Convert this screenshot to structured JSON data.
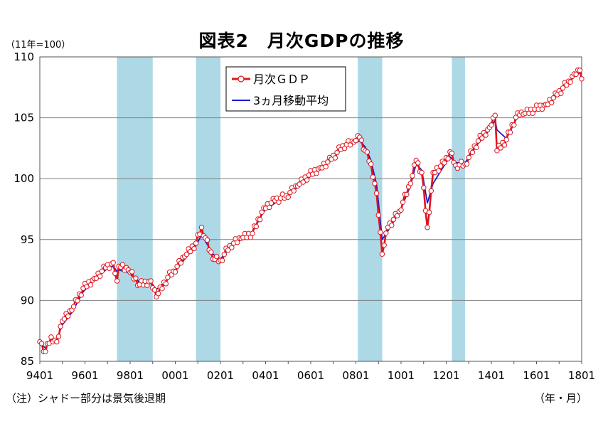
{
  "header": {
    "title": "図表2　月次GDPの推移",
    "unit": "（11年=100）"
  },
  "footer": {
    "note": "（注）シャドー部分は景気後退期",
    "x_unit": "（年・月）"
  },
  "colors": {
    "monthly": "#e0141e",
    "moving_avg": "#1c1ccf",
    "shade": "#add8e6",
    "grid": "#7f7f7f",
    "marker_fill": "#ffffff"
  },
  "chart_data": {
    "type": "line",
    "x_tick_labels": [
      "9401",
      "9601",
      "9801",
      "0001",
      "0201",
      "0401",
      "0601",
      "0801",
      "1001",
      "1201",
      "1401",
      "1601",
      "1801"
    ],
    "x_range": [
      "1994-01",
      "2018-01"
    ],
    "ylim": [
      85,
      110
    ],
    "y_ticks": [
      85,
      90,
      95,
      100,
      105,
      110
    ],
    "grid": true,
    "legend_position": "top-left inside plot",
    "recessions": [
      [
        "1997-06",
        "1999-01"
      ],
      [
        "2000-12",
        "2002-01"
      ],
      [
        "2008-02",
        "2009-03"
      ],
      [
        "2012-04",
        "2012-11"
      ]
    ],
    "series": [
      {
        "name": "月次ＧＤＰ",
        "style": "line-with-circle-markers",
        "anchors": [
          [
            "1994-01",
            86.6
          ],
          [
            "1994-04",
            85.8
          ],
          [
            "1994-07",
            87.0
          ],
          [
            "1994-10",
            86.6
          ],
          [
            "1995-01",
            88.3
          ],
          [
            "1995-06",
            89.2
          ],
          [
            "1995-12",
            91.0
          ],
          [
            "1996-06",
            91.8
          ],
          [
            "1996-12",
            92.7
          ],
          [
            "1997-04",
            93.1
          ],
          [
            "1997-06",
            91.6
          ],
          [
            "1997-07",
            92.8
          ],
          [
            "1997-12",
            92.5
          ],
          [
            "1998-06",
            91.3
          ],
          [
            "1998-12",
            91.6
          ],
          [
            "1999-03",
            90.3
          ],
          [
            "1999-09",
            91.9
          ],
          [
            "1999-12",
            92.4
          ],
          [
            "2000-06",
            93.6
          ],
          [
            "2000-12",
            94.7
          ],
          [
            "2001-03",
            96.0
          ],
          [
            "2001-09",
            93.4
          ],
          [
            "2002-01",
            93.3
          ],
          [
            "2002-06",
            94.5
          ],
          [
            "2002-12",
            95.1
          ],
          [
            "2003-06",
            95.5
          ],
          [
            "2003-12",
            97.6
          ],
          [
            "2004-06",
            98.2
          ],
          [
            "2004-12",
            98.6
          ],
          [
            "2005-06",
            99.4
          ],
          [
            "2005-12",
            100.3
          ],
          [
            "2006-06",
            100.9
          ],
          [
            "2006-12",
            101.6
          ],
          [
            "2007-06",
            102.7
          ],
          [
            "2007-12",
            103.0
          ],
          [
            "2008-03",
            103.4
          ],
          [
            "2008-06",
            102.3
          ],
          [
            "2008-09",
            101.2
          ],
          [
            "2008-12",
            98.8
          ],
          [
            "2009-03",
            93.8
          ],
          [
            "2009-06",
            96.0
          ],
          [
            "2009-12",
            97.3
          ],
          [
            "2010-06",
            99.6
          ],
          [
            "2010-09",
            101.5
          ],
          [
            "2010-12",
            100.5
          ],
          [
            "2011-03",
            96.0
          ],
          [
            "2011-06",
            100.5
          ],
          [
            "2011-12",
            101.3
          ],
          [
            "2012-03",
            102.2
          ],
          [
            "2012-06",
            101.1
          ],
          [
            "2012-11",
            101.2
          ],
          [
            "2013-06",
            103.1
          ],
          [
            "2013-12",
            104.2
          ],
          [
            "2014-03",
            105.2
          ],
          [
            "2014-04",
            102.3
          ],
          [
            "2014-09",
            103.2
          ],
          [
            "2015-03",
            105.4
          ],
          [
            "2015-06",
            105.3
          ],
          [
            "2015-12",
            105.7
          ],
          [
            "2016-06",
            106.1
          ],
          [
            "2016-12",
            106.9
          ],
          [
            "2017-06",
            108.0
          ],
          [
            "2017-09",
            108.6
          ],
          [
            "2017-12",
            108.9
          ],
          [
            "2018-01",
            108.2
          ]
        ]
      },
      {
        "name": "3ヵ月移動平均",
        "style": "line",
        "anchors": [
          [
            "1994-01",
            86.5
          ],
          [
            "1994-04",
            86.1
          ],
          [
            "1994-07",
            86.7
          ],
          [
            "1994-10",
            86.8
          ],
          [
            "1995-01",
            88.0
          ],
          [
            "1995-06",
            89.0
          ],
          [
            "1995-12",
            90.7
          ],
          [
            "1996-06",
            91.7
          ],
          [
            "1996-12",
            92.5
          ],
          [
            "1997-04",
            92.8
          ],
          [
            "1997-06",
            92.4
          ],
          [
            "1997-07",
            92.5
          ],
          [
            "1997-12",
            92.3
          ],
          [
            "1998-06",
            91.5
          ],
          [
            "1998-12",
            91.5
          ],
          [
            "1999-03",
            90.9
          ],
          [
            "1999-09",
            91.7
          ],
          [
            "1999-12",
            92.2
          ],
          [
            "2000-06",
            93.4
          ],
          [
            "2000-12",
            94.5
          ],
          [
            "2001-03",
            95.4
          ],
          [
            "2001-09",
            93.8
          ],
          [
            "2002-01",
            93.4
          ],
          [
            "2002-06",
            94.3
          ],
          [
            "2002-12",
            95.0
          ],
          [
            "2003-06",
            95.6
          ],
          [
            "2003-12",
            97.3
          ],
          [
            "2004-06",
            98.0
          ],
          [
            "2004-12",
            98.5
          ],
          [
            "2005-06",
            99.3
          ],
          [
            "2005-12",
            100.1
          ],
          [
            "2006-06",
            100.8
          ],
          [
            "2006-12",
            101.5
          ],
          [
            "2007-06",
            102.5
          ],
          [
            "2007-12",
            102.9
          ],
          [
            "2008-03",
            103.1
          ],
          [
            "2008-06",
            102.6
          ],
          [
            "2008-09",
            101.5
          ],
          [
            "2008-12",
            99.5
          ],
          [
            "2009-03",
            95.0
          ],
          [
            "2009-06",
            95.7
          ],
          [
            "2009-12",
            97.2
          ],
          [
            "2010-06",
            99.4
          ],
          [
            "2010-09",
            101.2
          ],
          [
            "2010-12",
            100.7
          ],
          [
            "2011-03",
            98.0
          ],
          [
            "2011-06",
            99.6
          ],
          [
            "2011-12",
            101.1
          ],
          [
            "2012-03",
            101.8
          ],
          [
            "2012-06",
            101.3
          ],
          [
            "2012-11",
            101.3
          ],
          [
            "2013-06",
            102.9
          ],
          [
            "2013-12",
            104.0
          ],
          [
            "2014-03",
            104.8
          ],
          [
            "2014-04",
            104.0
          ],
          [
            "2014-09",
            103.3
          ],
          [
            "2015-03",
            105.1
          ],
          [
            "2015-06",
            105.3
          ],
          [
            "2015-12",
            105.5
          ],
          [
            "2016-06",
            106.0
          ],
          [
            "2016-12",
            106.8
          ],
          [
            "2017-06",
            107.8
          ],
          [
            "2017-09",
            108.4
          ],
          [
            "2017-12",
            108.7
          ],
          [
            "2018-01",
            108.5
          ]
        ]
      }
    ]
  }
}
